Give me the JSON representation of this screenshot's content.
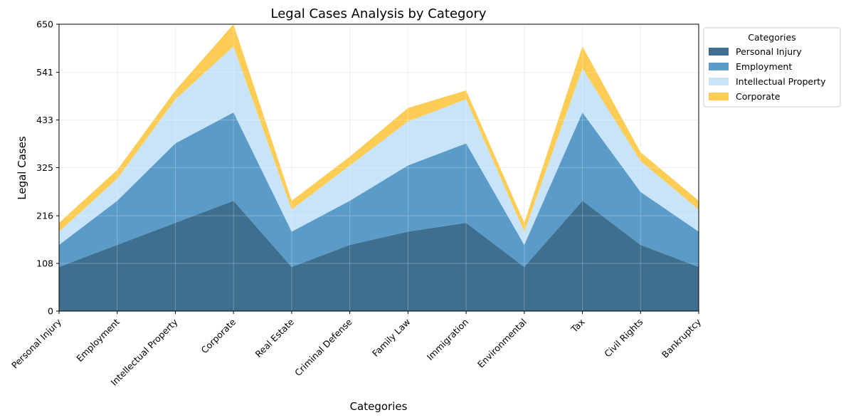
{
  "chart_data": {
    "type": "area",
    "stacked": true,
    "title": "Legal Cases Analysis by Category",
    "xlabel": "Categories",
    "ylabel": "Legal Cases",
    "categories": [
      "Personal Injury",
      "Employment",
      "Intellectual Property",
      "Corporate",
      "Real Estate",
      "Criminal Defense",
      "Family Law",
      "Immigration",
      "Environmental",
      "Tax",
      "Civil Rights",
      "Bankruptcy"
    ],
    "series": [
      {
        "name": "Personal Injury",
        "color": "#3f6f8f",
        "values": [
          100,
          150,
          200,
          250,
          100,
          150,
          180,
          200,
          100,
          250,
          150,
          100
        ]
      },
      {
        "name": "Employment",
        "color": "#5b9bc8",
        "values": [
          50,
          100,
          180,
          200,
          80,
          100,
          150,
          180,
          50,
          200,
          120,
          80
        ]
      },
      {
        "name": "Intellectual Property",
        "color": "#c8e4f8",
        "values": [
          30,
          50,
          100,
          150,
          50,
          80,
          100,
          100,
          30,
          100,
          70,
          50
        ]
      },
      {
        "name": "Corporate",
        "color": "#fccc55",
        "values": [
          20,
          20,
          20,
          50,
          20,
          20,
          30,
          20,
          20,
          50,
          20,
          20
        ]
      }
    ],
    "ylim": [
      0,
      650
    ],
    "yticks": [
      0,
      108,
      216,
      325,
      433,
      541,
      650
    ],
    "grid": true,
    "legend": {
      "title": "Categories",
      "position": "outside-top-right"
    }
  }
}
